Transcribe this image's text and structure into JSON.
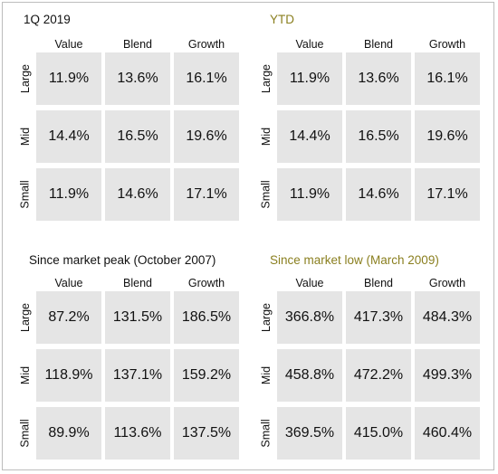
{
  "panels": [
    {
      "title": "1Q 2019",
      "title_color": "#111111",
      "columns": [
        "Value",
        "Blend",
        "Growth"
      ],
      "rows": [
        {
          "label": "Large",
          "values": [
            "11.9%",
            "13.6%",
            "16.1%"
          ]
        },
        {
          "label": "Mid",
          "values": [
            "14.4%",
            "16.5%",
            "19.6%"
          ]
        },
        {
          "label": "Small",
          "values": [
            "11.9%",
            "14.6%",
            "17.1%"
          ]
        }
      ]
    },
    {
      "title": "YTD",
      "title_color": "#8a7f1f",
      "columns": [
        "Value",
        "Blend",
        "Growth"
      ],
      "rows": [
        {
          "label": "Large",
          "values": [
            "11.9%",
            "13.6%",
            "16.1%"
          ]
        },
        {
          "label": "Mid",
          "values": [
            "14.4%",
            "16.5%",
            "19.6%"
          ]
        },
        {
          "label": "Small",
          "values": [
            "11.9%",
            "14.6%",
            "17.1%"
          ]
        }
      ]
    },
    {
      "title": "Since market peak (October 2007)",
      "title_color": "#111111",
      "columns": [
        "Value",
        "Blend",
        "Growth"
      ],
      "rows": [
        {
          "label": "Large",
          "values": [
            "87.2%",
            "131.5%",
            "186.5%"
          ]
        },
        {
          "label": "Mid",
          "values": [
            "118.9%",
            "137.1%",
            "159.2%"
          ]
        },
        {
          "label": "Small",
          "values": [
            "89.9%",
            "113.6%",
            "137.5%"
          ]
        }
      ]
    },
    {
      "title": "Since market low (March 2009)",
      "title_color": "#8a7f1f",
      "columns": [
        "Value",
        "Blend",
        "Growth"
      ],
      "rows": [
        {
          "label": "Large",
          "values": [
            "366.8%",
            "417.3%",
            "484.3%"
          ]
        },
        {
          "label": "Mid",
          "values": [
            "458.8%",
            "472.2%",
            "499.3%"
          ]
        },
        {
          "label": "Small",
          "values": [
            "369.5%",
            "415.0%",
            "460.4%"
          ]
        }
      ]
    }
  ]
}
